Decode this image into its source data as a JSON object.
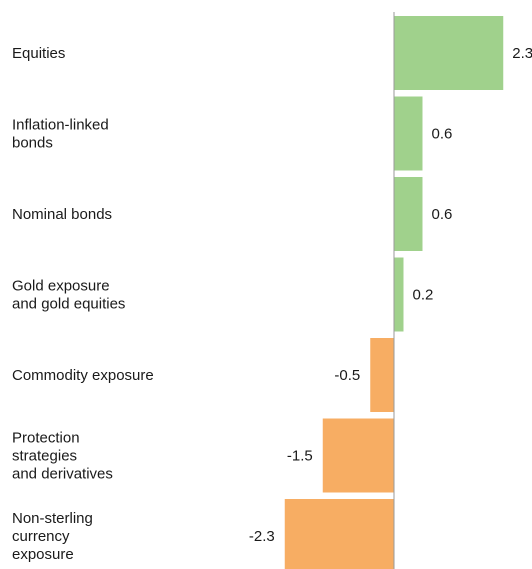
{
  "chart_data": {
    "type": "bar",
    "orientation": "horizontal",
    "categories": [
      [
        "Equities"
      ],
      [
        "Inflation-linked",
        "bonds"
      ],
      [
        "Nominal bonds"
      ],
      [
        "Gold exposure",
        "and gold equities"
      ],
      [
        "Commodity exposure"
      ],
      [
        "Protection",
        "strategies",
        "and derivatives"
      ],
      [
        "Non-sterling",
        "currency",
        "exposure"
      ]
    ],
    "values": [
      2.3,
      0.6,
      0.6,
      0.2,
      -0.5,
      -1.5,
      -2.3
    ],
    "value_labels": [
      "2.3",
      "0.6",
      "0.6",
      "0.2",
      "-0.5",
      "-1.5",
      "-2.3"
    ],
    "colors": {
      "positive": "#a0d18c",
      "negative": "#f7ad63",
      "axis": "#9a9a9a"
    },
    "grid": false,
    "legend": "none"
  }
}
